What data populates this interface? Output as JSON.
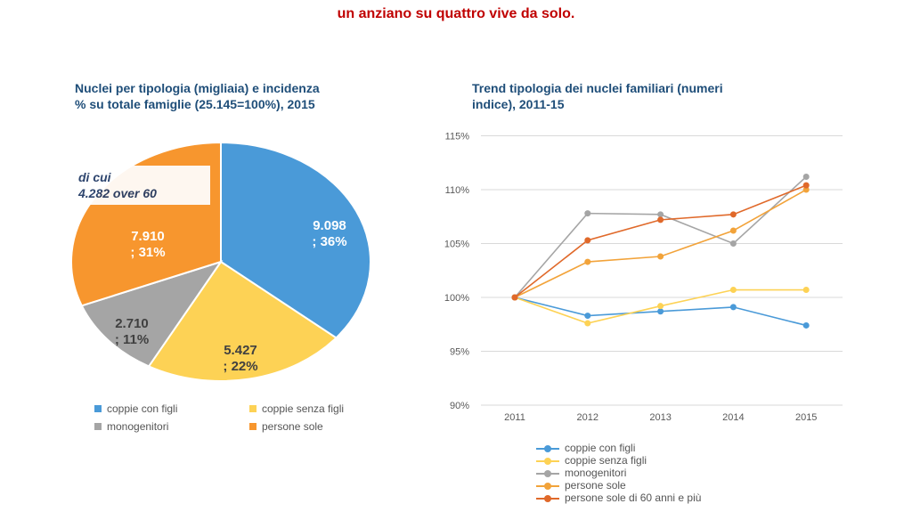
{
  "header": "un anziano su quattro vive da solo.",
  "chart_data": [
    {
      "type": "pie",
      "title": "Nuclei per tipologia (migliaia) e incidenza % su totale famiglie (25.145=100%), 2015",
      "title_lines": [
        "Nuclei per tipologia (migliaia) e incidenza",
        "% su totale famiglie (25.145=100%), 2015"
      ],
      "slices": [
        {
          "name": "coppie con figli",
          "value": 9098,
          "pct": 36,
          "label1": "9.098",
          "label2": "; 36%",
          "color": "#4a9ad8"
        },
        {
          "name": "coppie senza figli",
          "value": 5427,
          "pct": 22,
          "label1": "5.427",
          "label2": "; 22%",
          "color": "#fdd255"
        },
        {
          "name": "monogenitori",
          "value": 2710,
          "pct": 11,
          "label1": "2.710",
          "label2": "; 11%",
          "color": "#a5a5a5"
        },
        {
          "name": "persone sole",
          "value": 7910,
          "pct": 31,
          "label1": "7.910",
          "label2": "; 31%",
          "color": "#f7962e"
        }
      ],
      "annotation": [
        "di cui",
        "4.282 over 60"
      ],
      "legend": "bottom"
    },
    {
      "type": "line",
      "title": "Trend tipologia dei nuclei familiari (numeri indice), 2011-15",
      "title_lines": [
        "Trend tipologia dei nuclei familiari (numeri",
        "indice), 2011-15"
      ],
      "x": [
        "2011",
        "2012",
        "2013",
        "2014",
        "2015"
      ],
      "ylim": [
        90,
        115
      ],
      "yticks": [
        "90%",
        "95%",
        "100%",
        "105%",
        "110%",
        "115%"
      ],
      "grid": true,
      "legend": "bottom",
      "series": [
        {
          "name": "coppie con figli",
          "color": "#4a9ad8",
          "values": [
            100,
            98.3,
            98.7,
            99.1,
            97.4
          ]
        },
        {
          "name": "coppie senza figli",
          "color": "#fdd255",
          "values": [
            100,
            97.6,
            99.2,
            100.7,
            100.7
          ]
        },
        {
          "name": "monogenitori",
          "color": "#a5a5a5",
          "values": [
            100,
            107.8,
            107.7,
            105.0,
            111.2
          ]
        },
        {
          "name": "persone sole",
          "color": "#f2a33a",
          "values": [
            100,
            103.3,
            103.8,
            106.2,
            110.0
          ]
        },
        {
          "name": "persone sole di 60 anni e più",
          "color": "#e0692a",
          "values": [
            100,
            105.3,
            107.2,
            107.7,
            110.4
          ]
        }
      ]
    }
  ]
}
